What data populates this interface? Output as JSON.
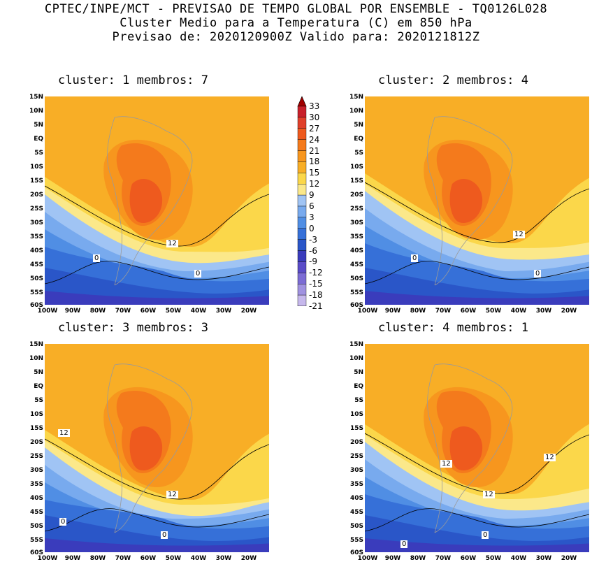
{
  "header": {
    "line1": "CPTEC/INPE/MCT - PREVISAO DE TEMPO GLOBAL POR ENSEMBLE - TQ0126L028",
    "line2": "Cluster Medio para a Temperatura (C) em 850 hPa",
    "line3": "Previsao de: 2020120900Z   Valido para: 2020121812Z"
  },
  "lat_labels": [
    "15N",
    "10N",
    "5N",
    "EQ",
    "5S",
    "10S",
    "15S",
    "20S",
    "25S",
    "30S",
    "35S",
    "40S",
    "45S",
    "50S",
    "55S",
    "60S"
  ],
  "lon_labels": [
    "100W",
    "90W",
    "80W",
    "70W",
    "60W",
    "50W",
    "40W",
    "30W",
    "20W"
  ],
  "panels": [
    {
      "title": "cluster: 1   membros: 7",
      "labels": [
        "12",
        "0",
        "0"
      ]
    },
    {
      "title": "cluster: 2   membros: 4",
      "labels": [
        "12",
        "0",
        "0"
      ]
    },
    {
      "title": "cluster: 3   membros: 3",
      "labels": [
        "12",
        "12",
        "0",
        "0"
      ]
    },
    {
      "title": "cluster: 4   membros: 1",
      "labels": [
        "12",
        "12",
        "12",
        "0",
        "0"
      ]
    }
  ],
  "colorbar": {
    "labels": [
      "33",
      "30",
      "27",
      "24",
      "21",
      "18",
      "15",
      "12",
      "9",
      "6",
      "3",
      "0",
      "-3",
      "-6",
      "-9",
      "-12",
      "-15",
      "-18",
      "-21"
    ],
    "colors": [
      "#a00000",
      "#c8202a",
      "#e0402a",
      "#ee5a1e",
      "#f47a1c",
      "#f7961e",
      "#f8ae26",
      "#fbd74a",
      "#fbe88a",
      "#a0c4f4",
      "#78aaee",
      "#508ee4",
      "#3670d8",
      "#2a56c8",
      "#3a3cbc",
      "#5a4cc8",
      "#7c6cd4",
      "#a092e0",
      "#c6b8ec",
      "#e0d8f4"
    ]
  }
}
